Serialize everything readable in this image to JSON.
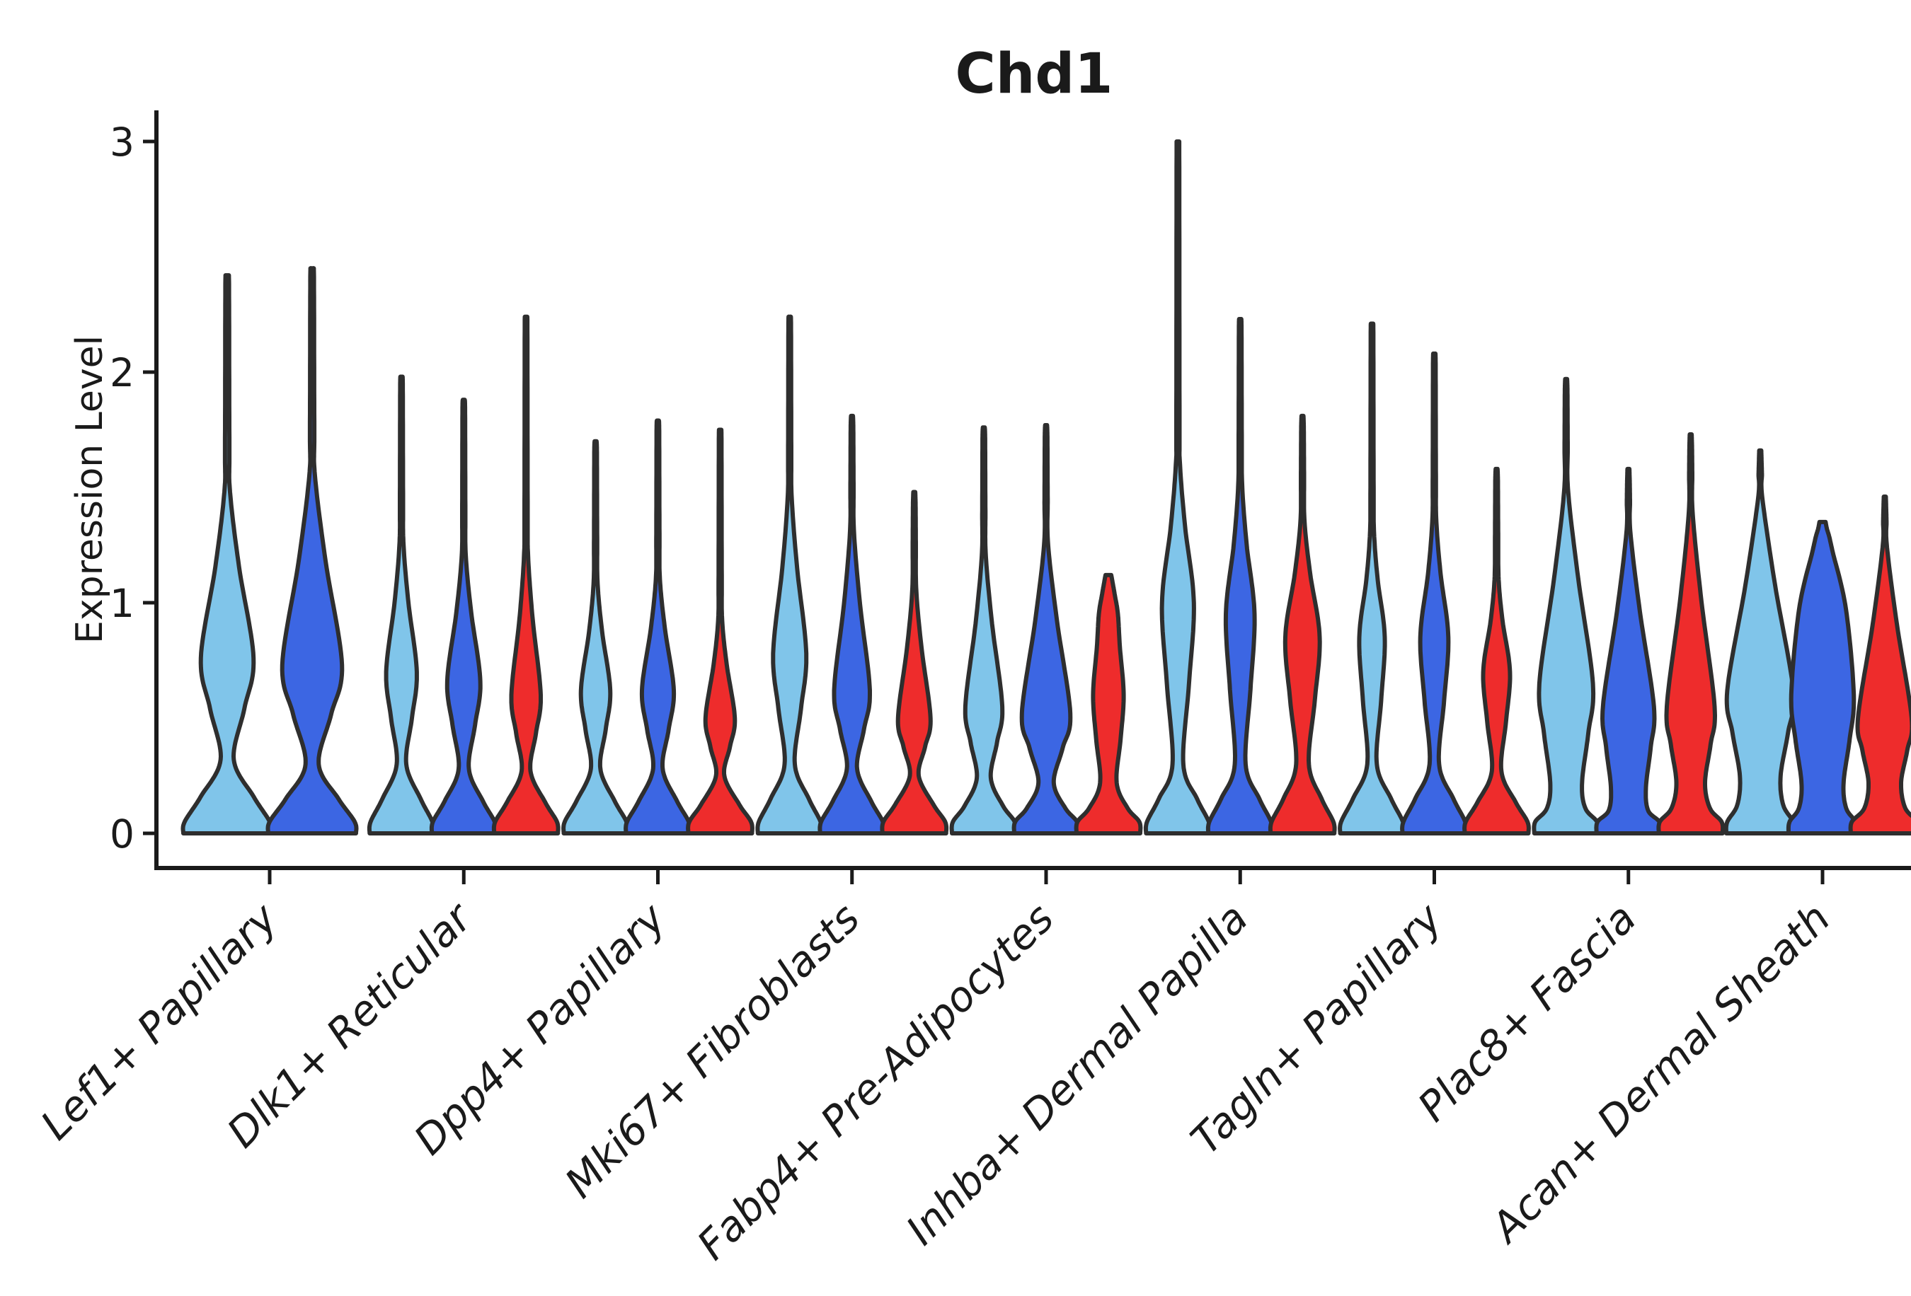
{
  "palette": {
    "light_blue": "#80C5EA",
    "dark_blue": "#3C66E3",
    "red": "#EE2C2C",
    "outline": "#2E2E2E",
    "axis": "#1A1A1A",
    "background": "#FFFFFF"
  },
  "chart_data": {
    "type": "violin",
    "title": "Chd1",
    "xlabel": "",
    "ylabel": "Expression Level",
    "ylim": [
      0,
      3.13
    ],
    "yticks": [
      0,
      1,
      2,
      3
    ],
    "grid": false,
    "legend": "none",
    "categories": [
      "Lef1+ Papillary",
      "Dlk1+ Reticular",
      "Dpp4+ Papillary",
      "Mki67+ Fibroblasts",
      "Fabp4+ Pre-Adipocytes",
      "Inhba+ Dermal Papilla",
      "Tagln+ Papillary",
      "Plac8+ Fascia",
      "Acan+ Dermal Sheath"
    ],
    "series_order": [
      "light_blue",
      "dark_blue",
      "red"
    ],
    "groups": [
      {
        "category": "Lef1+ Papillary",
        "violins": [
          {
            "series": "light_blue",
            "max": 2.42,
            "neck_v": 0.32,
            "neck_w": 0.15,
            "bulge_v": 0.76,
            "bulge_w": 0.6,
            "spike_v": 1.48
          },
          {
            "series": "dark_blue",
            "max": 2.45,
            "neck_v": 0.3,
            "neck_w": 0.15,
            "bulge_v": 0.73,
            "bulge_w": 0.68,
            "spike_v": 1.55
          }
        ]
      },
      {
        "category": "Dlk1+ Reticular",
        "violins": [
          {
            "series": "light_blue",
            "max": 1.98,
            "neck_v": 0.3,
            "neck_w": 0.15,
            "bulge_v": 0.7,
            "bulge_w": 0.48,
            "spike_v": 1.25
          },
          {
            "series": "dark_blue",
            "max": 1.88,
            "neck_v": 0.28,
            "neck_w": 0.16,
            "bulge_v": 0.66,
            "bulge_w": 0.52,
            "spike_v": 1.2
          },
          {
            "series": "red",
            "max": 2.24,
            "neck_v": 0.27,
            "neck_w": 0.14,
            "bulge_v": 0.6,
            "bulge_w": 0.46,
            "spike_v": 1.2
          }
        ]
      },
      {
        "category": "Dpp4+ Papillary",
        "violins": [
          {
            "series": "light_blue",
            "max": 1.7,
            "neck_v": 0.28,
            "neck_w": 0.15,
            "bulge_v": 0.62,
            "bulge_w": 0.46,
            "spike_v": 1.08
          },
          {
            "series": "dark_blue",
            "max": 1.79,
            "neck_v": 0.28,
            "neck_w": 0.15,
            "bulge_v": 0.62,
            "bulge_w": 0.5,
            "spike_v": 1.1
          },
          {
            "series": "red",
            "max": 1.75,
            "neck_v": 0.25,
            "neck_w": 0.13,
            "bulge_v": 0.5,
            "bulge_w": 0.46,
            "spike_v": 0.92
          }
        ]
      },
      {
        "category": "Mki67+ Fibroblasts",
        "violins": [
          {
            "series": "light_blue",
            "max": 2.24,
            "neck_v": 0.3,
            "neck_w": 0.16,
            "bulge_v": 0.78,
            "bulge_w": 0.52,
            "spike_v": 1.45
          },
          {
            "series": "dark_blue",
            "max": 1.81,
            "neck_v": 0.28,
            "neck_w": 0.16,
            "bulge_v": 0.62,
            "bulge_w": 0.56,
            "spike_v": 1.3
          },
          {
            "series": "red",
            "max": 1.48,
            "neck_v": 0.25,
            "neck_w": 0.14,
            "bulge_v": 0.5,
            "bulge_w": 0.51,
            "spike_v": 1.05
          }
        ]
      },
      {
        "category": "Fabp4+ Pre-Adipocytes",
        "violins": [
          {
            "series": "light_blue",
            "max": 1.76,
            "neck_v": 0.24,
            "neck_w": 0.22,
            "bulge_v": 0.55,
            "bulge_w": 0.58,
            "spike_v": 1.2
          },
          {
            "series": "dark_blue",
            "max": 1.77,
            "neck_v": 0.22,
            "neck_w": 0.24,
            "bulge_v": 0.52,
            "bulge_w": 0.76,
            "spike_v": 1.25
          },
          {
            "series": "red",
            "max": 1.12,
            "neck_v": 0.22,
            "neck_w": 0.26,
            "bulge_v": 0.6,
            "bulge_w": 0.48,
            "spike_v": 0.95,
            "blunt": true
          }
        ]
      },
      {
        "category": "Inhba+ Dermal Papilla",
        "violins": [
          {
            "series": "light_blue",
            "max": 3.0,
            "neck_v": 0.3,
            "neck_w": 0.17,
            "bulge_v": 1.0,
            "bulge_w": 0.5,
            "spike_v": 1.6
          },
          {
            "series": "dark_blue",
            "max": 2.23,
            "neck_v": 0.3,
            "neck_w": 0.17,
            "bulge_v": 0.95,
            "bulge_w": 0.45,
            "spike_v": 1.5
          },
          {
            "series": "red",
            "max": 1.81,
            "neck_v": 0.3,
            "neck_w": 0.2,
            "bulge_v": 0.85,
            "bulge_w": 0.54,
            "spike_v": 1.35
          }
        ]
      },
      {
        "category": "Tagln+ Papillary",
        "violins": [
          {
            "series": "light_blue",
            "max": 2.21,
            "neck_v": 0.3,
            "neck_w": 0.15,
            "bulge_v": 0.85,
            "bulge_w": 0.4,
            "spike_v": 1.3
          },
          {
            "series": "dark_blue",
            "max": 2.08,
            "neck_v": 0.3,
            "neck_w": 0.15,
            "bulge_v": 0.85,
            "bulge_w": 0.44,
            "spike_v": 1.35
          },
          {
            "series": "red",
            "max": 1.58,
            "neck_v": 0.27,
            "neck_w": 0.15,
            "bulge_v": 0.7,
            "bulge_w": 0.42,
            "spike_v": 1.1
          }
        ]
      },
      {
        "category": "Plac8+ Fascia",
        "violins": [
          {
            "series": "light_blue",
            "max": 1.97,
            "neck_v": 0.22,
            "neck_w": 0.5,
            "bulge_v": 0.65,
            "bulge_w": 0.84,
            "spike_v": 1.48
          },
          {
            "series": "dark_blue",
            "max": 1.58,
            "neck_v": 0.2,
            "neck_w": 0.55,
            "bulge_v": 0.55,
            "bulge_w": 0.8,
            "spike_v": 1.3
          },
          {
            "series": "red",
            "max": 1.73,
            "neck_v": 0.22,
            "neck_w": 0.45,
            "bulge_v": 0.55,
            "bulge_w": 0.75,
            "spike_v": 1.38
          }
        ]
      },
      {
        "category": "Acan+ Dermal Sheath",
        "violins": [
          {
            "series": "light_blue",
            "max": 1.66,
            "neck_v": 0.25,
            "neck_w": 0.6,
            "bulge_v": 0.62,
            "bulge_w": 0.97,
            "spike_v": 1.45
          },
          {
            "series": "dark_blue",
            "max": 1.35,
            "neck_v": 0.22,
            "neck_w": 0.62,
            "bulge_v": 0.6,
            "bulge_w": 0.92,
            "spike_v": 1.22,
            "blunt": true
          },
          {
            "series": "red",
            "max": 1.46,
            "neck_v": 0.22,
            "neck_w": 0.48,
            "bulge_v": 0.5,
            "bulge_w": 0.79,
            "spike_v": 1.24
          }
        ]
      }
    ]
  }
}
